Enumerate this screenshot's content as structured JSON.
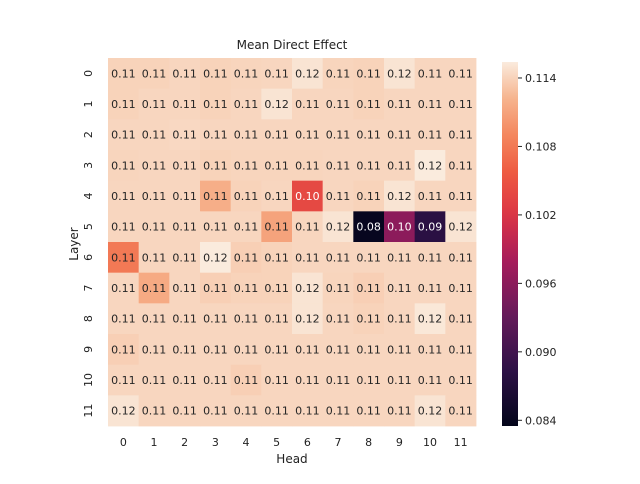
{
  "chart_data": {
    "type": "heatmap",
    "title": "Mean Direct Effect",
    "xlabel": "Head",
    "ylabel": "Layer",
    "x_categories": [
      "0",
      "1",
      "2",
      "3",
      "4",
      "5",
      "6",
      "7",
      "8",
      "9",
      "10",
      "11"
    ],
    "y_categories": [
      "0",
      "1",
      "2",
      "3",
      "4",
      "5",
      "6",
      "7",
      "8",
      "9",
      "10",
      "11"
    ],
    "values": [
      [
        0.114,
        0.114,
        0.1142,
        0.114,
        0.1141,
        0.1142,
        0.115,
        0.1141,
        0.114,
        0.115,
        0.1142,
        0.1142
      ],
      [
        0.114,
        0.1142,
        0.1142,
        0.114,
        0.1142,
        0.115,
        0.1142,
        0.1142,
        0.114,
        0.1142,
        0.1142,
        0.1142
      ],
      [
        0.1142,
        0.1142,
        0.1143,
        0.1142,
        0.1142,
        0.1142,
        0.1142,
        0.1142,
        0.1142,
        0.1142,
        0.1142,
        0.1142
      ],
      [
        0.1141,
        0.1142,
        0.1142,
        0.114,
        0.1141,
        0.1141,
        0.1141,
        0.1142,
        0.1142,
        0.1142,
        0.1155,
        0.1142
      ],
      [
        0.1142,
        0.1142,
        0.1142,
        0.1118,
        0.114,
        0.1142,
        0.104,
        0.1142,
        0.114,
        0.115,
        0.1142,
        0.1142
      ],
      [
        0.1142,
        0.1142,
        0.1142,
        0.1142,
        0.1142,
        0.111,
        0.1142,
        0.115,
        0.084,
        0.096,
        0.088,
        0.115
      ],
      [
        0.108,
        0.1142,
        0.1142,
        0.1155,
        0.1138,
        0.114,
        0.1142,
        0.1142,
        0.1142,
        0.1142,
        0.1142,
        0.1142
      ],
      [
        0.1142,
        0.1115,
        0.1142,
        0.1138,
        0.114,
        0.114,
        0.115,
        0.1141,
        0.1138,
        0.1142,
        0.1142,
        0.1142
      ],
      [
        0.1142,
        0.1142,
        0.1142,
        0.1142,
        0.1142,
        0.1142,
        0.115,
        0.1142,
        0.114,
        0.1142,
        0.1152,
        0.1142
      ],
      [
        0.1138,
        0.1142,
        0.1142,
        0.1142,
        0.1142,
        0.1142,
        0.1142,
        0.1142,
        0.1142,
        0.1142,
        0.1142,
        0.1142
      ],
      [
        0.1142,
        0.1142,
        0.1142,
        0.1142,
        0.1138,
        0.1142,
        0.1142,
        0.1142,
        0.1142,
        0.1142,
        0.1142,
        0.1142
      ],
      [
        0.115,
        0.1142,
        0.1142,
        0.1142,
        0.1142,
        0.1142,
        0.1142,
        0.1142,
        0.1142,
        0.1142,
        0.115,
        0.1142
      ]
    ],
    "annotations": [
      [
        "0.11",
        "0.11",
        "0.11",
        "0.11",
        "0.11",
        "0.11",
        "0.12",
        "0.11",
        "0.11",
        "0.12",
        "0.11",
        "0.11"
      ],
      [
        "0.11",
        "0.11",
        "0.11",
        "0.11",
        "0.11",
        "0.12",
        "0.11",
        "0.11",
        "0.11",
        "0.11",
        "0.11",
        "0.11"
      ],
      [
        "0.11",
        "0.11",
        "0.11",
        "0.11",
        "0.11",
        "0.11",
        "0.11",
        "0.11",
        "0.11",
        "0.11",
        "0.11",
        "0.11"
      ],
      [
        "0.11",
        "0.11",
        "0.11",
        "0.11",
        "0.11",
        "0.11",
        "0.11",
        "0.11",
        "0.11",
        "0.11",
        "0.12",
        "0.11"
      ],
      [
        "0.11",
        "0.11",
        "0.11",
        "0.11",
        "0.11",
        "0.11",
        "0.10",
        "0.11",
        "0.11",
        "0.12",
        "0.11",
        "0.11"
      ],
      [
        "0.11",
        "0.11",
        "0.11",
        "0.11",
        "0.11",
        "0.11",
        "0.11",
        "0.12",
        "0.08",
        "0.10",
        "0.09",
        "0.12"
      ],
      [
        "0.11",
        "0.11",
        "0.11",
        "0.12",
        "0.11",
        "0.11",
        "0.11",
        "0.11",
        "0.11",
        "0.11",
        "0.11",
        "0.11"
      ],
      [
        "0.11",
        "0.11",
        "0.11",
        "0.11",
        "0.11",
        "0.11",
        "0.12",
        "0.11",
        "0.11",
        "0.11",
        "0.11",
        "0.11"
      ],
      [
        "0.11",
        "0.11",
        "0.11",
        "0.11",
        "0.11",
        "0.11",
        "0.12",
        "0.11",
        "0.11",
        "0.11",
        "0.12",
        "0.11"
      ],
      [
        "0.11",
        "0.11",
        "0.11",
        "0.11",
        "0.11",
        "0.11",
        "0.11",
        "0.11",
        "0.11",
        "0.11",
        "0.11",
        "0.11"
      ],
      [
        "0.11",
        "0.11",
        "0.11",
        "0.11",
        "0.11",
        "0.11",
        "0.11",
        "0.11",
        "0.11",
        "0.11",
        "0.11",
        "0.11"
      ],
      [
        "0.12",
        "0.11",
        "0.11",
        "0.11",
        "0.11",
        "0.11",
        "0.11",
        "0.11",
        "0.11",
        "0.11",
        "0.12",
        "0.11"
      ]
    ],
    "colorbar": {
      "vmin": 0.0835,
      "vmax": 0.1154,
      "ticks": [
        0.084,
        0.09,
        0.096,
        0.102,
        0.108,
        0.114
      ],
      "tick_labels": [
        "0.084",
        "0.090",
        "0.096",
        "0.102",
        "0.108",
        "0.114"
      ]
    },
    "colormap": "rocket",
    "grid": false,
    "legend": "colorbar-right"
  }
}
